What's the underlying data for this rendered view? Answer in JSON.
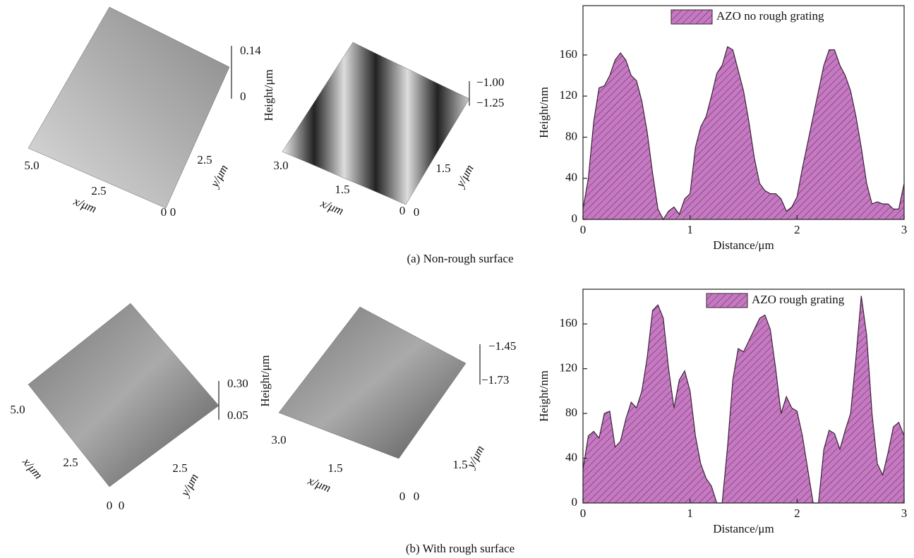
{
  "chart_data": [
    {
      "type": "area",
      "legend": "AZO no rough grating",
      "color": "#c679c2",
      "hatch": true,
      "x_label": "Distance/μm",
      "y_label": "Height/nm",
      "xlim": [
        0,
        3
      ],
      "xticks": [
        0,
        1,
        2,
        3
      ],
      "ylim": [
        0,
        208
      ],
      "yticks": [
        0,
        40,
        80,
        120,
        160
      ],
      "x": [
        0,
        0.05,
        0.1,
        0.15,
        0.2,
        0.25,
        0.3,
        0.35,
        0.4,
        0.45,
        0.5,
        0.55,
        0.6,
        0.65,
        0.7,
        0.75,
        0.8,
        0.85,
        0.9,
        0.95,
        1,
        1.05,
        1.1,
        1.15,
        1.2,
        1.25,
        1.3,
        1.35,
        1.4,
        1.45,
        1.5,
        1.55,
        1.6,
        1.65,
        1.7,
        1.75,
        1.8,
        1.85,
        1.9,
        1.95,
        2,
        2.05,
        2.1,
        2.15,
        2.2,
        2.25,
        2.3,
        2.35,
        2.4,
        2.45,
        2.5,
        2.55,
        2.6,
        2.65,
        2.7,
        2.75,
        2.8,
        2.85,
        2.9,
        2.95,
        3
      ],
      "values": [
        10,
        40,
        95,
        128,
        130,
        140,
        155,
        162,
        155,
        140,
        135,
        115,
        85,
        45,
        10,
        0,
        8,
        12,
        5,
        20,
        25,
        70,
        90,
        100,
        120,
        142,
        150,
        168,
        165,
        145,
        125,
        95,
        60,
        35,
        28,
        25,
        25,
        20,
        8,
        12,
        22,
        50,
        75,
        100,
        125,
        150,
        165,
        165,
        150,
        140,
        125,
        100,
        70,
        35,
        15,
        17,
        15,
        15,
        10,
        10,
        35
      ]
    },
    {
      "type": "area",
      "legend": "AZO rough grating",
      "color": "#c679c2",
      "hatch": true,
      "x_label": "Distance/μm",
      "y_label": "Height/nm",
      "xlim": [
        0,
        3
      ],
      "xticks": [
        0,
        1,
        2,
        3
      ],
      "ylim": [
        0,
        191
      ],
      "yticks": [
        0,
        40,
        80,
        120,
        160
      ],
      "x": [
        0,
        0.05,
        0.1,
        0.15,
        0.2,
        0.25,
        0.3,
        0.35,
        0.4,
        0.45,
        0.5,
        0.55,
        0.6,
        0.65,
        0.7,
        0.75,
        0.8,
        0.85,
        0.9,
        0.95,
        1,
        1.05,
        1.1,
        1.15,
        1.2,
        1.25,
        1.3,
        1.35,
        1.4,
        1.45,
        1.5,
        1.55,
        1.6,
        1.65,
        1.7,
        1.75,
        1.8,
        1.85,
        1.9,
        1.95,
        2,
        2.05,
        2.1,
        2.15,
        2.2,
        2.25,
        2.3,
        2.35,
        2.4,
        2.45,
        2.5,
        2.55,
        2.6,
        2.65,
        2.7,
        2.75,
        2.8,
        2.85,
        2.9,
        2.95,
        3
      ],
      "values": [
        30,
        60,
        64,
        58,
        80,
        82,
        50,
        55,
        75,
        90,
        85,
        100,
        130,
        172,
        177,
        165,
        120,
        85,
        110,
        118,
        100,
        60,
        35,
        22,
        15,
        0,
        0,
        50,
        110,
        138,
        135,
        145,
        155,
        165,
        168,
        155,
        120,
        80,
        95,
        85,
        82,
        60,
        30,
        0,
        0,
        48,
        65,
        62,
        48,
        65,
        80,
        130,
        185,
        150,
        80,
        35,
        25,
        45,
        68,
        72,
        60
      ]
    }
  ],
  "surfaces": [
    {
      "z_ticks": [
        "0.14",
        "0"
      ],
      "x_ticks": [
        "5.0",
        "2.5",
        "0"
      ],
      "y_ticks": [
        "2.5",
        "0"
      ],
      "x_label": "x/μm",
      "y_label": "y/μm"
    },
    {
      "z_label": "Height/μm",
      "z_ticks": [
        "−1.00",
        "−1.25"
      ],
      "x_ticks": [
        "3.0",
        "1.5",
        "0"
      ],
      "y_ticks": [
        "1.5",
        "0"
      ],
      "x_label": "x/μm",
      "y_label": "y/μm"
    },
    {
      "z_ticks": [
        "0.30",
        "0.05"
      ],
      "x_ticks": [
        "5.0",
        "2.5",
        "0"
      ],
      "y_ticks": [
        "2.5",
        "0"
      ],
      "x_label": "x/μm",
      "y_label": "y/μm"
    },
    {
      "z_label": "Height/μm",
      "z_ticks": [
        "−1.45",
        "−1.73"
      ],
      "x_ticks": [
        "3.0",
        "1.5",
        "0"
      ],
      "y_ticks": [
        "1.5",
        "0"
      ],
      "x_label": "x/μm",
      "y_label": "y/μm"
    }
  ],
  "captions": [
    "(a) Non-rough surface",
    "(b) With rough surface"
  ]
}
